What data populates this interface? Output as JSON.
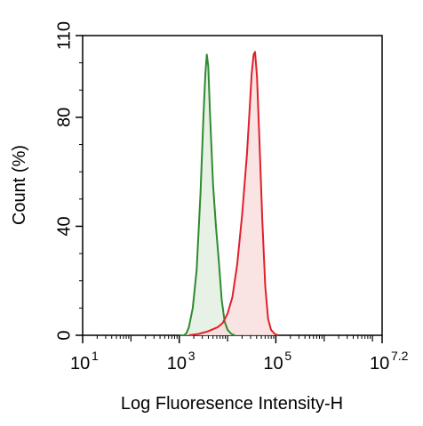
{
  "chart_data": {
    "type": "histogram",
    "xlabel": "Log Fluoresence Intensity-H",
    "ylabel": "Count  (%)",
    "x_scale": "log10",
    "xlim_log10": [
      1,
      7.2
    ],
    "ylim": [
      0,
      110
    ],
    "y_ticks": [
      {
        "value": 0,
        "label": "0"
      },
      {
        "value": 40,
        "label": "40"
      },
      {
        "value": 80,
        "label": "80"
      },
      {
        "value": 110,
        "label": "110"
      }
    ],
    "x_ticks": [
      {
        "log10": 1,
        "base": "10",
        "exp": "1"
      },
      {
        "log10": 3,
        "base": "10",
        "exp": "3"
      },
      {
        "log10": 5,
        "base": "10",
        "exp": "5"
      },
      {
        "log10": 7.2,
        "base": "10",
        "exp": "7.2"
      }
    ],
    "grid": false,
    "legend": "none",
    "series": [
      {
        "color": "#2e8b2e",
        "fill": "#e3efe0",
        "points": [
          [
            3.0,
            0
          ],
          [
            3.1,
            0
          ],
          [
            3.15,
            0.8
          ],
          [
            3.2,
            3
          ],
          [
            3.28,
            10
          ],
          [
            3.36,
            24
          ],
          [
            3.44,
            52
          ],
          [
            3.5,
            80
          ],
          [
            3.54,
            96
          ],
          [
            3.57,
            103
          ],
          [
            3.6,
            99
          ],
          [
            3.64,
            80
          ],
          [
            3.7,
            55
          ],
          [
            3.76,
            40
          ],
          [
            3.82,
            27
          ],
          [
            3.88,
            13
          ],
          [
            3.94,
            5
          ],
          [
            4.0,
            2
          ],
          [
            4.08,
            0.5
          ],
          [
            4.15,
            0
          ]
        ]
      },
      {
        "color": "#e0202a",
        "fill": "#f8dede",
        "points": [
          [
            3.2,
            0
          ],
          [
            3.4,
            0.5
          ],
          [
            3.6,
            1.5
          ],
          [
            3.8,
            3
          ],
          [
            3.9,
            4.5
          ],
          [
            4.0,
            8
          ],
          [
            4.1,
            14
          ],
          [
            4.2,
            26
          ],
          [
            4.3,
            44
          ],
          [
            4.4,
            66
          ],
          [
            4.46,
            84
          ],
          [
            4.5,
            96
          ],
          [
            4.54,
            103
          ],
          [
            4.57,
            104
          ],
          [
            4.61,
            95
          ],
          [
            4.66,
            72
          ],
          [
            4.72,
            42
          ],
          [
            4.78,
            18
          ],
          [
            4.84,
            6
          ],
          [
            4.9,
            2
          ],
          [
            4.98,
            0.5
          ],
          [
            5.05,
            0
          ]
        ]
      }
    ]
  }
}
